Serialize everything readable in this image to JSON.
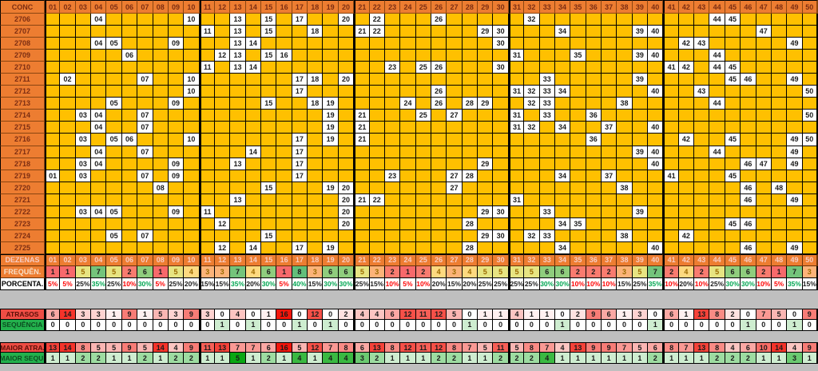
{
  "table": {
    "corner_label": "CONC",
    "columns": [
      "01",
      "02",
      "03",
      "04",
      "05",
      "06",
      "07",
      "08",
      "09",
      "10",
      "11",
      "12",
      "13",
      "14",
      "15",
      "16",
      "17",
      "18",
      "19",
      "20",
      "21",
      "22",
      "23",
      "24",
      "25",
      "26",
      "27",
      "28",
      "29",
      "30",
      "31",
      "32",
      "33",
      "34",
      "35",
      "36",
      "37",
      "38",
      "39",
      "40",
      "41",
      "42",
      "43",
      "44",
      "45",
      "46",
      "47",
      "48",
      "49",
      "50"
    ],
    "rows": [
      {
        "conc": "2706",
        "hits": [
          "04",
          "10",
          "13",
          "15",
          "17",
          "20",
          "22",
          "26",
          "32",
          "44",
          "45"
        ]
      },
      {
        "conc": "2707",
        "hits": [
          "11",
          "13",
          "15",
          "18",
          "21",
          "22",
          "29",
          "30",
          "34",
          "39",
          "40",
          "47"
        ]
      },
      {
        "conc": "2708",
        "hits": [
          "04",
          "05",
          "09",
          "13",
          "14",
          "30",
          "42",
          "43",
          "49"
        ]
      },
      {
        "conc": "2709",
        "hits": [
          "06",
          "12",
          "13",
          "15",
          "16",
          "31",
          "35",
          "39",
          "40",
          "44"
        ]
      },
      {
        "conc": "2710",
        "hits": [
          "11",
          "13",
          "14",
          "23",
          "25",
          "26",
          "30",
          "41",
          "42",
          "44",
          "45"
        ]
      },
      {
        "conc": "2711",
        "hits": [
          "02",
          "07",
          "10",
          "17",
          "18",
          "20",
          "33",
          "39",
          "45",
          "46",
          "49"
        ]
      },
      {
        "conc": "2712",
        "hits": [
          "10",
          "17",
          "26",
          "31",
          "32",
          "33",
          "34",
          "40",
          "43",
          "50"
        ]
      },
      {
        "conc": "2713",
        "hits": [
          "05",
          "09",
          "15",
          "18",
          "19",
          "24",
          "26",
          "28",
          "29",
          "32",
          "33",
          "38",
          "44"
        ]
      },
      {
        "conc": "2714",
        "hits": [
          "03",
          "04",
          "07",
          "19",
          "21",
          "25",
          "27",
          "31",
          "33",
          "36",
          "50"
        ]
      },
      {
        "conc": "2715",
        "hits": [
          "04",
          "07",
          "19",
          "21",
          "31",
          "32",
          "34",
          "37",
          "40"
        ]
      },
      {
        "conc": "2716",
        "hits": [
          "03",
          "05",
          "06",
          "10",
          "17",
          "19",
          "21",
          "36",
          "42",
          "45",
          "49",
          "50"
        ]
      },
      {
        "conc": "2717",
        "hits": [
          "04",
          "07",
          "14",
          "17",
          "39",
          "40",
          "44",
          "49"
        ]
      },
      {
        "conc": "2718",
        "hits": [
          "03",
          "04",
          "09",
          "13",
          "17",
          "29",
          "40",
          "46",
          "47",
          "49"
        ]
      },
      {
        "conc": "2719",
        "hits": [
          "01",
          "03",
          "07",
          "09",
          "17",
          "23",
          "27",
          "28",
          "34",
          "37",
          "41",
          "45"
        ]
      },
      {
        "conc": "2720",
        "hits": [
          "08",
          "15",
          "19",
          "20",
          "27",
          "38",
          "46",
          "48"
        ]
      },
      {
        "conc": "2721",
        "hits": [
          "13",
          "20",
          "21",
          "22",
          "31",
          "46",
          "49"
        ]
      },
      {
        "conc": "2722",
        "hits": [
          "03",
          "04",
          "05",
          "09",
          "11",
          "20",
          "29",
          "30",
          "33",
          "39"
        ]
      },
      {
        "conc": "2723",
        "hits": [
          "12",
          "20",
          "28",
          "34",
          "35",
          "45",
          "46"
        ]
      },
      {
        "conc": "2724",
        "hits": [
          "05",
          "07",
          "15",
          "29",
          "30",
          "32",
          "33",
          "38",
          "42"
        ]
      },
      {
        "conc": "2725",
        "hits": [
          "12",
          "14",
          "17",
          "19",
          "28",
          "34",
          "40",
          "46",
          "49"
        ]
      }
    ],
    "dezenas_label": "DEZENAS",
    "freq_label": "FREQUÊN.",
    "freq_values": [
      1,
      1,
      5,
      7,
      5,
      2,
      6,
      1,
      5,
      4,
      3,
      3,
      7,
      4,
      6,
      1,
      8,
      3,
      6,
      6,
      5,
      3,
      2,
      1,
      2,
      4,
      3,
      4,
      5,
      5,
      5,
      5,
      6,
      6,
      2,
      2,
      2,
      3,
      5,
      7,
      2,
      4,
      2,
      5,
      6,
      6,
      2,
      1,
      7,
      3
    ],
    "porc_label": "PORCENTA.",
    "porc_values": [
      "5%",
      "5%",
      "25%",
      "35%",
      "25%",
      "10%",
      "30%",
      "5%",
      "25%",
      "20%",
      "15%",
      "15%",
      "35%",
      "20%",
      "30%",
      "5%",
      "40%",
      "15%",
      "30%",
      "30%",
      "25%",
      "15%",
      "10%",
      "5%",
      "10%",
      "20%",
      "15%",
      "20%",
      "25%",
      "25%",
      "25%",
      "25%",
      "30%",
      "30%",
      "10%",
      "10%",
      "10%",
      "15%",
      "25%",
      "35%",
      "10%",
      "20%",
      "10%",
      "25%",
      "30%",
      "30%",
      "10%",
      "5%",
      "35%",
      "15%"
    ]
  },
  "stats": {
    "atrasos": {
      "label": "ATRASOS",
      "values": [
        6,
        14,
        3,
        3,
        1,
        9,
        1,
        5,
        3,
        9,
        3,
        0,
        4,
        0,
        1,
        16,
        0,
        12,
        0,
        2,
        4,
        4,
        6,
        12,
        11,
        12,
        5,
        0,
        1,
        1,
        4,
        1,
        1,
        0,
        2,
        9,
        6,
        1,
        3,
        0,
        6,
        1,
        13,
        8,
        2,
        0,
        7,
        5,
        0,
        9
      ]
    },
    "sequencia": {
      "label": "SEQUÊNCIA",
      "values": [
        0,
        0,
        0,
        0,
        0,
        0,
        0,
        0,
        0,
        0,
        0,
        1,
        0,
        1,
        0,
        0,
        1,
        0,
        1,
        0,
        0,
        0,
        0,
        0,
        0,
        0,
        0,
        1,
        0,
        0,
        0,
        0,
        0,
        1,
        0,
        0,
        0,
        0,
        0,
        1,
        0,
        0,
        0,
        0,
        0,
        1,
        0,
        0,
        1,
        0
      ]
    },
    "maior_atraso": {
      "label": "MAIOR ATRA.",
      "values": [
        13,
        14,
        8,
        5,
        5,
        9,
        5,
        14,
        4,
        9,
        11,
        13,
        7,
        7,
        6,
        16,
        5,
        12,
        7,
        8,
        6,
        13,
        8,
        12,
        11,
        12,
        8,
        7,
        5,
        11,
        5,
        8,
        7,
        4,
        13,
        9,
        9,
        7,
        5,
        6,
        8,
        7,
        13,
        8,
        4,
        6,
        10,
        14,
        4,
        9
      ]
    },
    "maior_sequencia": {
      "label": "MAIOR SEQU.",
      "values": [
        1,
        1,
        2,
        2,
        1,
        1,
        2,
        1,
        2,
        2,
        1,
        1,
        5,
        1,
        2,
        1,
        4,
        1,
        4,
        4,
        3,
        2,
        1,
        1,
        1,
        2,
        2,
        1,
        1,
        2,
        2,
        2,
        4,
        1,
        1,
        1,
        1,
        1,
        1,
        2,
        1,
        1,
        1,
        2,
        2,
        2,
        1,
        1,
        3,
        1
      ]
    }
  },
  "colors": {
    "header_orange": "#ED7D31",
    "header_text": "#7c2d12",
    "cell_gold": "#FFC000",
    "hit_white": "#FFFFFF",
    "gray_band": "#BFBFBF",
    "atrasos_header_red": "#ee4d44",
    "sequencia_header_green": "#23b14d",
    "red_scale_max": "#F3160B",
    "green_scale_max": "#09A713",
    "porc_red_text": "#FF0000",
    "porc_green_text": "#00A651",
    "freq_gold_text": "#9b6a00",
    "freq_scale": {
      "1": "#F8696B",
      "2": "#F97B6F",
      "3": "#FCB379",
      "4": "#FDD980",
      "5": "#E7E482",
      "6": "#8FCD7D",
      "7": "#74C47B",
      "8": "#63BE7A"
    }
  },
  "scales": {
    "red_max_value": 16,
    "green_max_value": 5
  }
}
